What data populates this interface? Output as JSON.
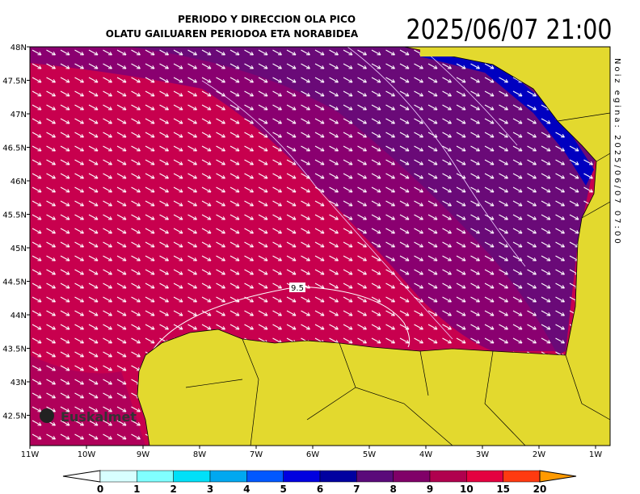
{
  "header": {
    "title_line1": "PERIODO Y DIRECCION OLA PICO",
    "title_line2": "OLATU GAILUAREN PERIODOA ETA NORABIDEA",
    "valid_time": "2025/06/07 21:00",
    "issued": "Noiz egina: 2025/06/07 07:00"
  },
  "map": {
    "lat_labels": [
      "48N",
      "47.5N",
      "47N",
      "46.5N",
      "46N",
      "45.5N",
      "45N",
      "44.5N",
      "44N",
      "43.5N",
      "43N",
      "42.5N"
    ],
    "lon_labels": [
      "11W",
      "10W",
      "9W",
      "8W",
      "7W",
      "6W",
      "5W",
      "4W",
      "3W",
      "2W",
      "1W"
    ],
    "contour_label": "9.5",
    "logo": "Euskalmet"
  },
  "colorbar": {
    "labels": [
      "0",
      "1",
      "2",
      "3",
      "4",
      "5",
      "6",
      "7",
      "8",
      "9",
      "10",
      "15",
      "20"
    ],
    "colors": [
      "#ffffff",
      "#d8ffff",
      "#80ffff",
      "#00e0f8",
      "#00a8f0",
      "#0058ff",
      "#0000e0",
      "#0000a0",
      "#5a0a7a",
      "#800068",
      "#b0004e",
      "#e40040",
      "#ff3a10",
      "#ff6a20",
      "#ff9a00"
    ]
  }
}
